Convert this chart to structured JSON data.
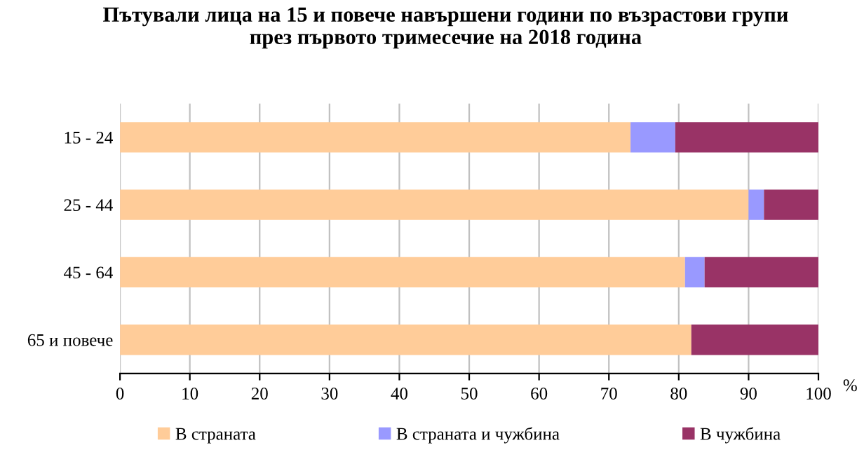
{
  "chart_data": {
    "type": "bar",
    "orientation": "horizontal",
    "stacked": true,
    "title": "Пътували лица на 15 и повече навършени години по възрастови групи\nпрез първото тримесечие на 2018 година",
    "xlabel": "%",
    "categories": [
      "15 - 24",
      "25 - 44",
      "45 - 64",
      "65 и повече"
    ],
    "series": [
      {
        "name": "В страната",
        "color": "#ffcc99",
        "values": [
          73.1,
          90.0,
          80.9,
          81.8
        ]
      },
      {
        "name": "В страната и чужбина",
        "color": "#9999ff",
        "values": [
          6.4,
          2.2,
          2.8,
          0
        ]
      },
      {
        "name": "В чужбина",
        "color": "#993366",
        "values": [
          20.5,
          7.8,
          16.3,
          18.2
        ]
      }
    ],
    "xlim": [
      0,
      100
    ],
    "xticks": [
      0,
      10,
      20,
      30,
      40,
      50,
      60,
      70,
      80,
      90,
      100
    ],
    "grid": "x",
    "legend": "bottom"
  }
}
